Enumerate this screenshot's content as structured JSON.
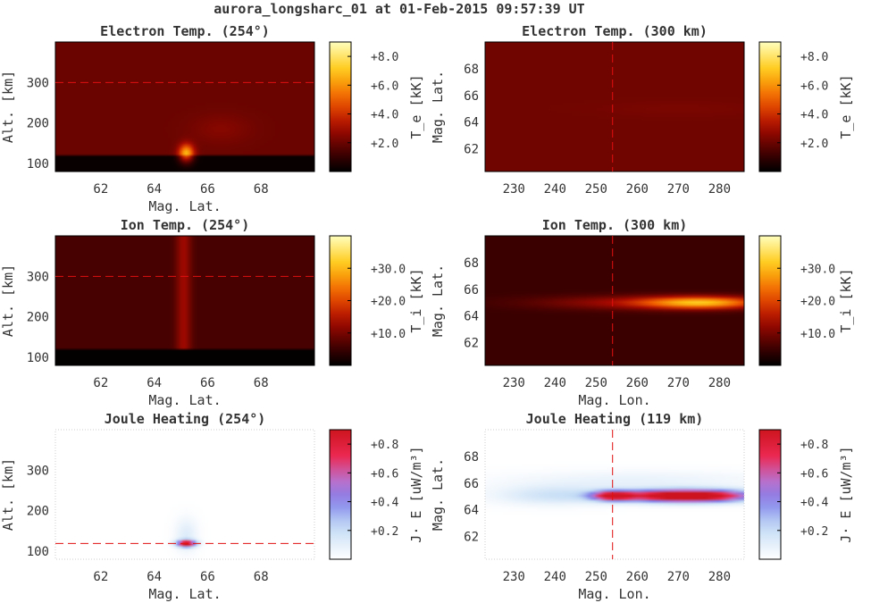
{
  "figure_title": "aurora_longsharc_01 at 01-Feb-2015 09:57:39 UT",
  "chart_data": [
    {
      "type": "heatmap",
      "title": "Electron Temp. (254°)",
      "xlabel": "Mag. Lat.",
      "ylabel": "Alt. [km]",
      "xlim": [
        60.3,
        70.0
      ],
      "ylim": [
        80,
        400
      ],
      "xticks": [
        62,
        64,
        66,
        68
      ],
      "yticks": [
        100,
        200,
        300
      ],
      "colormap": "hot",
      "clim": [
        0,
        9
      ],
      "colorbar_label": "T_e [kK]",
      "colorbar_sub": "e",
      "colorbar_ticks": [
        "+2.0",
        "+4.0",
        "+6.0",
        "+8.0"
      ],
      "colorbar_tick_values": [
        2,
        4,
        6,
        8
      ],
      "background_value": 2.0,
      "low_band_top": 120,
      "low_band_value": 0.15,
      "blobs": [
        {
          "x": 65.2,
          "y": 125,
          "rx": 0.28,
          "ry": 22,
          "value": 4.8
        },
        {
          "x": 66.5,
          "y": 185,
          "rx": 1.1,
          "ry": 35,
          "value": 0.5
        }
      ],
      "reference_line": {
        "orientation": "horizontal",
        "value": 300
      }
    },
    {
      "type": "heatmap",
      "title": "Electron Temp. (300 km)",
      "xlabel": "",
      "ylabel": "Mag. Lat.",
      "xlim": [
        223,
        286
      ],
      "ylim": [
        60.3,
        70.0
      ],
      "xticks": [
        230,
        240,
        250,
        260,
        270,
        280
      ],
      "yticks": [
        62,
        64,
        66,
        68
      ],
      "colormap": "hot",
      "clim": [
        0,
        9
      ],
      "colorbar_label": "T_e [kK]",
      "colorbar_sub": "e",
      "colorbar_ticks": [
        "+2.0",
        "+4.0",
        "+6.0",
        "+8.0"
      ],
      "colorbar_tick_values": [
        2,
        4,
        6,
        8
      ],
      "background_value": 2.1,
      "low_band_top": null,
      "low_band_value": null,
      "blobs": [
        {
          "x": 270,
          "y": 65.0,
          "rx": 20,
          "ry": 0.6,
          "value": 0.2
        }
      ],
      "reference_line": {
        "orientation": "vertical",
        "value": 254
      }
    },
    {
      "type": "heatmap",
      "title": "Ion Temp. (254°)",
      "xlabel": "Mag. Lat.",
      "ylabel": "Alt. [km]",
      "xlim": [
        60.3,
        70.0
      ],
      "ylim": [
        80,
        400
      ],
      "xticks": [
        62,
        64,
        66,
        68
      ],
      "yticks": [
        100,
        200,
        300
      ],
      "colormap": "hot",
      "clim": [
        0,
        40
      ],
      "colorbar_label": "T_i [kK]",
      "colorbar_sub": "i",
      "colorbar_ticks": [
        "+10.0",
        "+20.0",
        "+30.0"
      ],
      "colorbar_tick_values": [
        10,
        20,
        30
      ],
      "background_value": 6.0,
      "low_band_top": 120,
      "low_band_value": 0.3,
      "column": {
        "x": 65.1,
        "width": 0.28,
        "ymin": 120,
        "value": 7.0
      },
      "reference_line": {
        "orientation": "horizontal",
        "value": 300
      }
    },
    {
      "type": "heatmap",
      "title": "Ion Temp. (300 km)",
      "xlabel": "Mag. Lon.",
      "ylabel": "Mag. Lat.",
      "xlim": [
        223,
        286
      ],
      "ylim": [
        60.3,
        70.0
      ],
      "xticks": [
        230,
        240,
        250,
        260,
        270,
        280
      ],
      "yticks": [
        62,
        64,
        66,
        68
      ],
      "colormap": "hot",
      "clim": [
        0,
        40
      ],
      "colorbar_label": "T_i [kK]",
      "colorbar_sub": "i",
      "colorbar_ticks": [
        "+10.0",
        "+20.0",
        "+30.0"
      ],
      "colorbar_tick_values": [
        10,
        20,
        30
      ],
      "background_value": 5.0,
      "low_band_top": null,
      "low_band_value": null,
      "blobs": [
        {
          "x": 276,
          "y": 65.0,
          "rx": 14,
          "ry": 0.45,
          "value": 22
        },
        {
          "x": 260,
          "y": 65.0,
          "rx": 24,
          "ry": 0.5,
          "value": 8
        }
      ],
      "reference_line": {
        "orientation": "vertical",
        "value": 254
      }
    },
    {
      "type": "heatmap",
      "title": "Joule Heating (254°)",
      "xlabel": "Mag. Lat.",
      "ylabel": "Alt. [km]",
      "xlim": [
        60.3,
        70.0
      ],
      "ylim": [
        80,
        400
      ],
      "xticks": [
        62,
        64,
        66,
        68
      ],
      "yticks": [
        100,
        200,
        300
      ],
      "colormap": "joule",
      "clim": [
        0,
        0.9
      ],
      "colorbar_label": "J· E [uW/m³]",
      "colorbar_sub": "",
      "colorbar_ticks": [
        "+0.2",
        "+0.4",
        "+0.6",
        "+0.8"
      ],
      "colorbar_tick_values": [
        0.2,
        0.4,
        0.6,
        0.8
      ],
      "background_value": 0.0,
      "low_band_top": null,
      "low_band_value": null,
      "blobs": [
        {
          "x": 65.2,
          "y": 119,
          "rx": 0.35,
          "ry": 8,
          "value": 0.9
        },
        {
          "x": 65.2,
          "y": 140,
          "rx": 0.4,
          "ry": 40,
          "value": 0.12
        }
      ],
      "reference_line": {
        "orientation": "horizontal",
        "value": 119
      }
    },
    {
      "type": "heatmap",
      "title": "Joule Heating (119 km)",
      "xlabel": "Mag. Lon.",
      "ylabel": "Mag. Lat.",
      "xlim": [
        223,
        286
      ],
      "ylim": [
        60.3,
        70.0
      ],
      "xticks": [
        230,
        240,
        250,
        260,
        270,
        280
      ],
      "yticks": [
        62,
        64,
        66,
        68
      ],
      "colormap": "joule",
      "clim": [
        0,
        0.9
      ],
      "colorbar_label": "J· E [uW/m³]",
      "colorbar_sub": "",
      "colorbar_ticks": [
        "+0.2",
        "+0.4",
        "+0.6",
        "+0.8"
      ],
      "colorbar_tick_values": [
        0.2,
        0.4,
        0.6,
        0.8
      ],
      "background_value": 0.0,
      "low_band_top": null,
      "low_band_value": null,
      "blobs": [
        {
          "x": 272,
          "y": 65.05,
          "rx": 15,
          "ry": 0.45,
          "value": 1.2
        },
        {
          "x": 254,
          "y": 65.05,
          "rx": 5,
          "ry": 0.35,
          "value": 0.7
        },
        {
          "x": 240,
          "y": 65.1,
          "rx": 14,
          "ry": 0.7,
          "value": 0.18
        },
        {
          "x": 260,
          "y": 66.2,
          "rx": 30,
          "ry": 0.7,
          "value": 0.08
        }
      ],
      "reference_line": {
        "orientation": "vertical",
        "value": 254
      }
    }
  ]
}
